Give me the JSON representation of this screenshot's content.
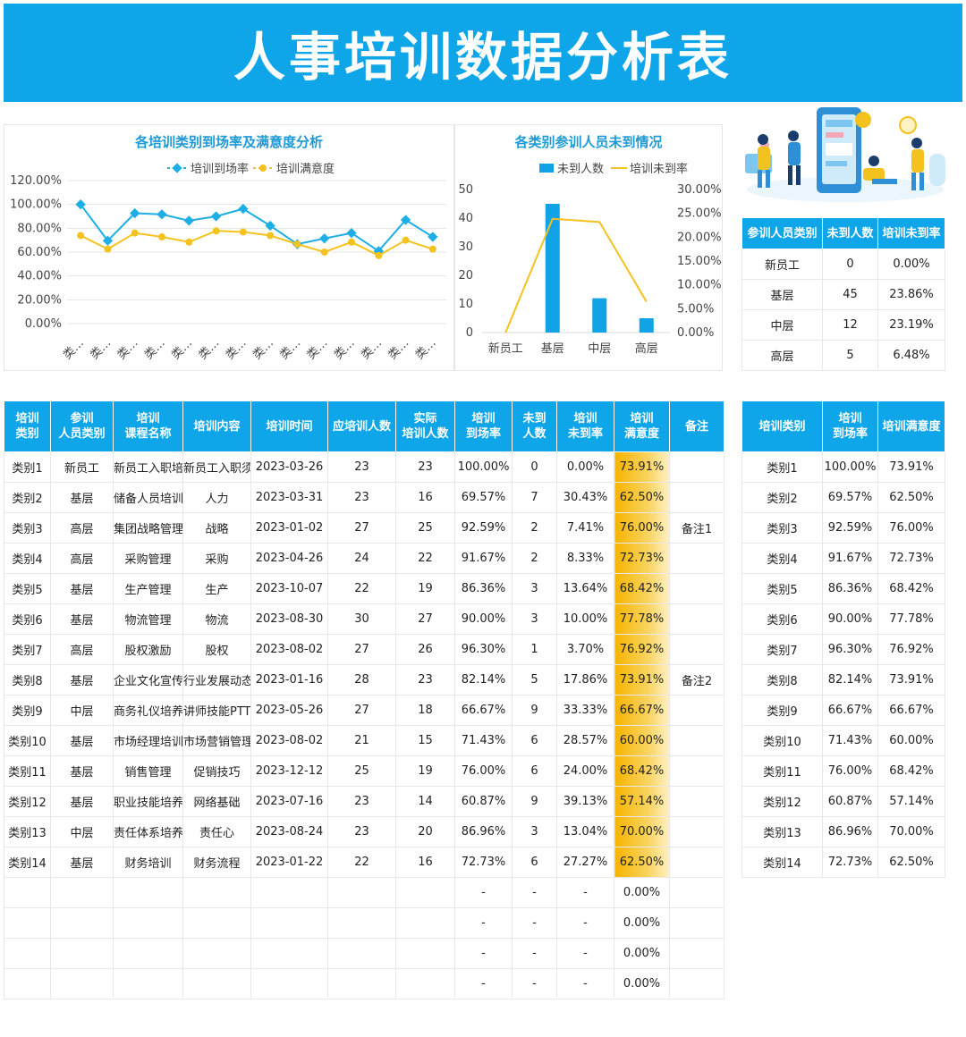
{
  "title": "人事培训数据分析表",
  "colors": {
    "accent": "#0ea5e9",
    "line1": "#1eaee6",
    "line2": "#f4c21e",
    "bar": "#12a3e6",
    "title_text": "#1e9ad6"
  },
  "chart_data": [
    {
      "type": "line",
      "title": "各培训类别到场率及满意度分析",
      "categories": [
        "类…",
        "类…",
        "类…",
        "类…",
        "类…",
        "类…",
        "类…",
        "类…",
        "类…",
        "类…",
        "类…",
        "类…",
        "类…",
        "类…"
      ],
      "series": [
        {
          "name": "培训到场率",
          "values": [
            100.0,
            69.57,
            92.59,
            91.67,
            86.36,
            90.0,
            96.3,
            82.14,
            66.67,
            71.43,
            76.0,
            60.87,
            86.96,
            72.73
          ]
        },
        {
          "name": "培训满意度",
          "values": [
            73.91,
            62.5,
            76.0,
            72.73,
            68.42,
            77.78,
            76.92,
            73.91,
            66.67,
            60.0,
            68.42,
            57.14,
            70.0,
            62.5
          ]
        }
      ],
      "y_ticks": [
        "120.00%",
        "100.00%",
        "80.00%",
        "60.00%",
        "40.00%",
        "20.00%",
        "0.00%"
      ],
      "ylim": [
        0,
        120
      ],
      "legend": "top",
      "grid": true
    },
    {
      "type": "bar",
      "title": "各类别参训人员未到情况",
      "categories": [
        "新员工",
        "基层",
        "中层",
        "高层"
      ],
      "series": [
        {
          "name": "未到人数",
          "type": "bar",
          "values": [
            0,
            45,
            12,
            5
          ]
        },
        {
          "name": "培训未到率",
          "type": "line",
          "values": [
            0.0,
            23.86,
            23.19,
            6.48
          ]
        }
      ],
      "y_ticks": [
        "50",
        "40",
        "30",
        "20",
        "10",
        "0"
      ],
      "ylim": [
        0,
        50
      ],
      "y2_ticks": [
        "30.00%",
        "25.00%",
        "20.00%",
        "15.00%",
        "10.00%",
        "5.00%",
        "0.00%"
      ],
      "y2lim": [
        0,
        30
      ],
      "legend": "top"
    }
  ],
  "absence_table": {
    "headers": [
      "参训人员类别",
      "未到人数",
      "培训未到率"
    ],
    "rows": [
      [
        "新员工",
        "0",
        "0.00%"
      ],
      [
        "基层",
        "45",
        "23.86%"
      ],
      [
        "中层",
        "12",
        "23.19%"
      ],
      [
        "高层",
        "5",
        "6.48%"
      ]
    ]
  },
  "main_table": {
    "headers": [
      "培训\n类别",
      "参训\n人员类别",
      "培训\n课程名称",
      "培训内容",
      "培训时间",
      "应培训人数",
      "实际\n培训人数",
      "培训\n到场率",
      "未到\n人数",
      "培训\n未到率",
      "培训\n满意度",
      "备注"
    ],
    "rows": [
      [
        "类别1",
        "新员工",
        "新员工入职培训",
        "新员工入职须知",
        "2023-03-26",
        "23",
        "23",
        "100.00%",
        "0",
        "0.00%",
        "73.91%",
        ""
      ],
      [
        "类别2",
        "基层",
        "储备人员培训",
        "人力",
        "2023-03-31",
        "23",
        "16",
        "69.57%",
        "7",
        "30.43%",
        "62.50%",
        ""
      ],
      [
        "类别3",
        "高层",
        "集团战略管理",
        "战略",
        "2023-01-02",
        "27",
        "25",
        "92.59%",
        "2",
        "7.41%",
        "76.00%",
        "备注1"
      ],
      [
        "类别4",
        "高层",
        "采购管理",
        "采购",
        "2023-04-26",
        "24",
        "22",
        "91.67%",
        "2",
        "8.33%",
        "72.73%",
        ""
      ],
      [
        "类别5",
        "基层",
        "生产管理",
        "生产",
        "2023-10-07",
        "22",
        "19",
        "86.36%",
        "3",
        "13.64%",
        "68.42%",
        ""
      ],
      [
        "类别6",
        "基层",
        "物流管理",
        "物流",
        "2023-08-30",
        "30",
        "27",
        "90.00%",
        "3",
        "10.00%",
        "77.78%",
        ""
      ],
      [
        "类别7",
        "高层",
        "股权激励",
        "股权",
        "2023-08-02",
        "27",
        "26",
        "96.30%",
        "1",
        "3.70%",
        "76.92%",
        ""
      ],
      [
        "类别8",
        "基层",
        "企业文化宣传",
        "行业发展动态",
        "2023-01-16",
        "28",
        "23",
        "82.14%",
        "5",
        "17.86%",
        "73.91%",
        "备注2"
      ],
      [
        "类别9",
        "中层",
        "商务礼仪培养",
        "讲师技能PTT",
        "2023-05-26",
        "27",
        "18",
        "66.67%",
        "9",
        "33.33%",
        "66.67%",
        ""
      ],
      [
        "类别10",
        "基层",
        "市场经理培训",
        "市场营销管理",
        "2023-08-02",
        "21",
        "15",
        "71.43%",
        "6",
        "28.57%",
        "60.00%",
        ""
      ],
      [
        "类别11",
        "基层",
        "销售管理",
        "促销技巧",
        "2023-12-12",
        "25",
        "19",
        "76.00%",
        "6",
        "24.00%",
        "68.42%",
        ""
      ],
      [
        "类别12",
        "基层",
        "职业技能培养",
        "网络基础",
        "2023-07-16",
        "23",
        "14",
        "60.87%",
        "9",
        "39.13%",
        "57.14%",
        ""
      ],
      [
        "类别13",
        "中层",
        "责任体系培养",
        "责任心",
        "2023-08-24",
        "23",
        "20",
        "86.96%",
        "3",
        "13.04%",
        "70.00%",
        ""
      ],
      [
        "类别14",
        "基层",
        "财务培训",
        "财务流程",
        "2023-01-22",
        "22",
        "16",
        "72.73%",
        "6",
        "27.27%",
        "62.50%",
        ""
      ],
      [
        "",
        "",
        "",
        "",
        "",
        "",
        "",
        "-",
        "-",
        "-",
        "0.00%",
        ""
      ],
      [
        "",
        "",
        "",
        "",
        "",
        "",
        "",
        "-",
        "-",
        "-",
        "0.00%",
        ""
      ],
      [
        "",
        "",
        "",
        "",
        "",
        "",
        "",
        "-",
        "-",
        "-",
        "0.00%",
        ""
      ],
      [
        "",
        "",
        "",
        "",
        "",
        "",
        "",
        "-",
        "-",
        "-",
        "0.00%",
        ""
      ]
    ]
  },
  "summary_table": {
    "headers": [
      "培训类别",
      "培训\n到场率",
      "培训满意度"
    ],
    "rows": [
      [
        "类别1",
        "100.00%",
        "73.91%"
      ],
      [
        "类别2",
        "69.57%",
        "62.50%"
      ],
      [
        "类别3",
        "92.59%",
        "76.00%"
      ],
      [
        "类别4",
        "91.67%",
        "72.73%"
      ],
      [
        "类别5",
        "86.36%",
        "68.42%"
      ],
      [
        "类别6",
        "90.00%",
        "77.78%"
      ],
      [
        "类别7",
        "96.30%",
        "76.92%"
      ],
      [
        "类别8",
        "82.14%",
        "73.91%"
      ],
      [
        "类别9",
        "66.67%",
        "66.67%"
      ],
      [
        "类别10",
        "71.43%",
        "60.00%"
      ],
      [
        "类别11",
        "76.00%",
        "68.42%"
      ],
      [
        "类别12",
        "60.87%",
        "57.14%"
      ],
      [
        "类别13",
        "86.96%",
        "70.00%"
      ],
      [
        "类别14",
        "72.73%",
        "62.50%"
      ]
    ]
  }
}
